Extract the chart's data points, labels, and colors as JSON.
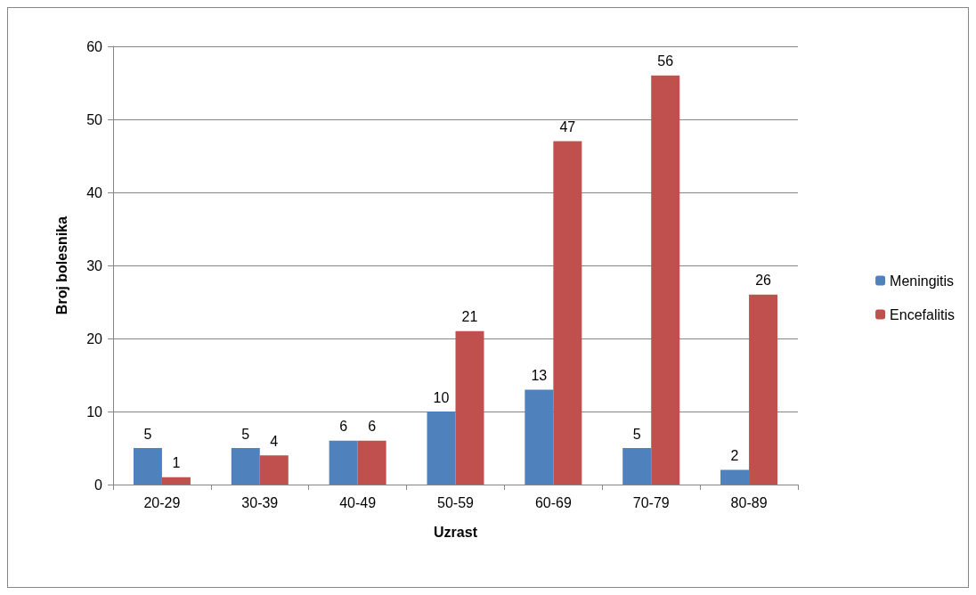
{
  "chart_data": {
    "type": "bar",
    "xlabel": "Uzrast",
    "ylabel": "Broj bolesnika",
    "categories": [
      "20-29",
      "30-39",
      "40-49",
      "50-59",
      "60-69",
      "70-79",
      "80-89"
    ],
    "series": [
      {
        "name": "Meningitis",
        "color": "#4f81bd",
        "values": [
          5,
          5,
          6,
          10,
          13,
          5,
          2
        ]
      },
      {
        "name": "Encefalitis",
        "color": "#c0504d",
        "values": [
          1,
          4,
          6,
          21,
          47,
          56,
          26
        ]
      }
    ],
    "ylim": [
      0,
      60
    ],
    "yticks": [
      0,
      10,
      20,
      30,
      40,
      50,
      60
    ],
    "grid": "y",
    "legend": "right",
    "data_labels": true
  }
}
